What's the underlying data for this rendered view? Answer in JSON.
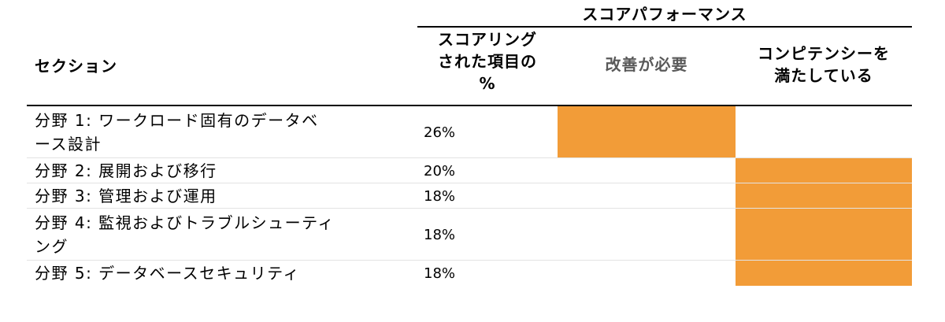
{
  "header": {
    "group_title": "スコアパフォーマンス",
    "section_col": "セクション",
    "pct_col_lines": [
      "スコアリング",
      "された項目の",
      "%"
    ],
    "needs_col": "改善が必要",
    "meets_col_lines": [
      "コンピテンシーを",
      "満たしている"
    ]
  },
  "rows": [
    {
      "label_lines": [
        "分野 1: ワークロード固有のデータベ",
        "ース設計"
      ],
      "pct": "26%",
      "level": "needs_improvement"
    },
    {
      "label_lines": [
        "分野 2: 展開および移行"
      ],
      "pct": "20%",
      "level": "meets_competency"
    },
    {
      "label_lines": [
        "分野 3: 管理および運用"
      ],
      "pct": "18%",
      "level": "meets_competency"
    },
    {
      "label_lines": [
        "分野 4: 監視およびトラブルシューティ",
        "ング"
      ],
      "pct": "18%",
      "level": "meets_competency"
    },
    {
      "label_lines": [
        "分野 5: データベースセキュリティ"
      ],
      "pct": "18%",
      "level": "meets_competency"
    }
  ],
  "colors": {
    "fill": "#f29c38",
    "needs_header_text": "#595959"
  }
}
